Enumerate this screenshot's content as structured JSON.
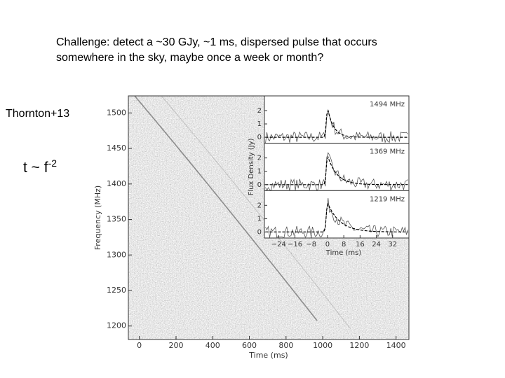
{
  "slide": {
    "title_lines": [
      "Challenge: detect a ~30 GJy, ~1 ms, dispersed pulse that occurs",
      "somewhere in the sky, maybe once a week or month?"
    ],
    "citation": "Thornton+13",
    "formula": {
      "base": "t ~ f",
      "exponent": "-2"
    }
  },
  "figure": {
    "main": {
      "xlabel": "Time (ms)",
      "ylabel": "Frequency (MHz)",
      "xlim": [
        -60,
        1470
      ],
      "ylim": [
        1181,
        1524
      ],
      "xticks": [
        0,
        200,
        400,
        600,
        800,
        1000,
        1200,
        1400
      ],
      "yticks": [
        1200,
        1250,
        1300,
        1350,
        1400,
        1450,
        1500
      ]
    },
    "inset": {
      "xlabel": "Time (ms)",
      "ylabel": "Flux Density (Jy)",
      "xlim": [
        -31,
        40
      ],
      "xticks": [
        {
          "value": -24,
          "label": "−24"
        },
        {
          "value": -16,
          "label": "−16"
        },
        {
          "value": -8,
          "label": "−8"
        },
        0,
        8,
        16,
        24,
        32
      ],
      "panels": [
        {
          "label": "1494 MHz",
          "ylim": [
            -0.45,
            3.1
          ],
          "yticks": [
            0,
            1,
            2
          ]
        },
        {
          "label": "1369 MHz",
          "ylim": [
            -0.45,
            3.1
          ],
          "yticks": [
            0,
            1,
            2
          ]
        },
        {
          "label": "1219 MHz",
          "ylim": [
            -0.45,
            3.1
          ],
          "yticks": [
            0,
            1,
            2
          ]
        }
      ]
    }
  }
}
